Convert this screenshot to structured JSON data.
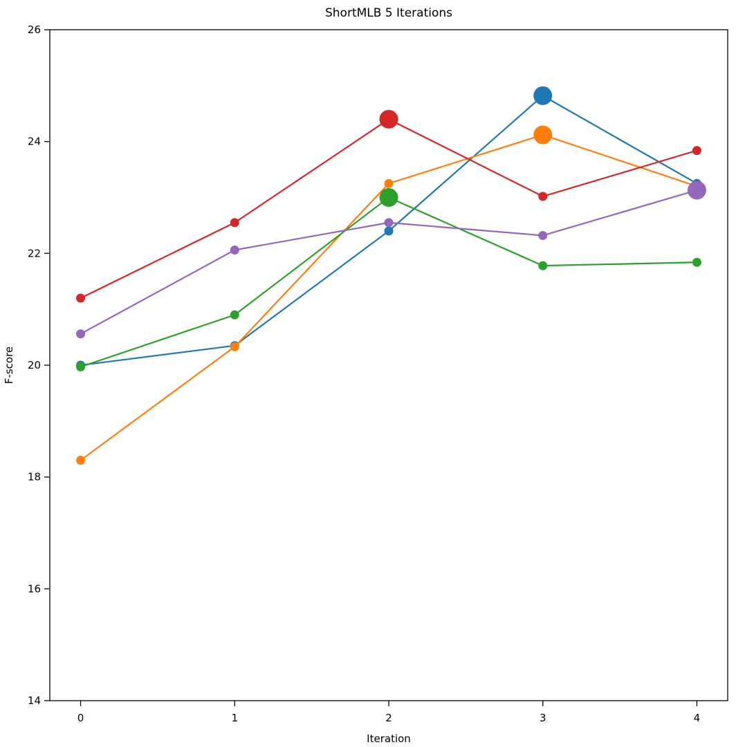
{
  "chart_data": {
    "type": "line",
    "title": "ShortMLB 5 Iterations",
    "xlabel": "Iteration",
    "ylabel": "F-score",
    "x": [
      0,
      1,
      2,
      3,
      4
    ],
    "xticks": [
      "0",
      "1",
      "2",
      "3",
      "4"
    ],
    "yticks": [
      "14",
      "16",
      "18",
      "20",
      "22",
      "24",
      "26"
    ],
    "ytick_values": [
      14,
      16,
      18,
      20,
      22,
      24,
      26
    ],
    "xlim": [
      -0.2,
      4.2
    ],
    "ylim": [
      14,
      26
    ],
    "grid": false,
    "legend_position": "none",
    "marker_style": "circle",
    "highlight_meaning": "enlarged marker at series maximum",
    "series": [
      {
        "name": "series-blue",
        "color": "#1f77b4",
        "values": [
          20.0,
          20.35,
          22.4,
          24.82,
          23.25
        ],
        "highlight_index": 3
      },
      {
        "name": "series-orange",
        "color": "#ff7f0e",
        "values": [
          18.3,
          20.33,
          23.25,
          24.12,
          23.2
        ],
        "highlight_index": 3
      },
      {
        "name": "series-green",
        "color": "#2ca02c",
        "values": [
          19.97,
          20.9,
          23.0,
          21.78,
          21.84
        ],
        "highlight_index": 2
      },
      {
        "name": "series-red",
        "color": "#d62728",
        "values": [
          21.2,
          22.55,
          24.4,
          23.02,
          23.84
        ],
        "highlight_index": 2
      },
      {
        "name": "series-purple",
        "color": "#9467bd",
        "values": [
          20.56,
          22.06,
          22.55,
          22.32,
          23.13
        ],
        "highlight_index": 4
      }
    ],
    "axis_color": "#000000",
    "background_color": "#ffffff"
  }
}
